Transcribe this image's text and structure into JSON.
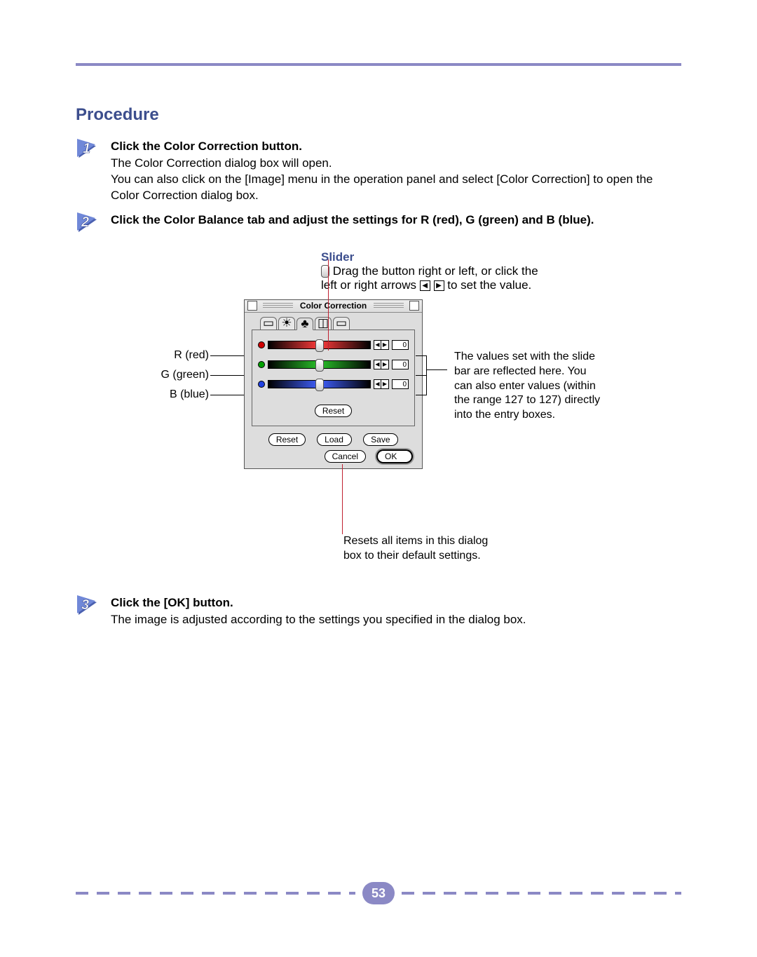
{
  "page": {
    "section_title": "Procedure",
    "page_number": "53",
    "colors": {
      "accent": "#8b89c5",
      "heading": "#3c4e8d",
      "leader": "#c02030"
    }
  },
  "steps": [
    {
      "num": "1",
      "heading": "Click the Color Correction button.",
      "body": "The Color Correction dialog box will open.\nYou can also click on the [Image] menu in the operation panel and select [Color Correction] to open the Color Correction dialog box."
    },
    {
      "num": "2",
      "heading": "Click the Color Balance tab and adjust the settings for R (red), G (green) and B (blue).",
      "body": ""
    },
    {
      "num": "3",
      "heading": "Click the [OK] button.",
      "body": "The image is adjusted according to the settings you specified in the dialog box."
    }
  ],
  "slider_note": {
    "label": "Slider",
    "line1_a": "Drag the button right or left, or click the",
    "line2_a": "left or right arrows",
    "line2_b": "to set the value."
  },
  "dialog": {
    "title": "Color Correction",
    "channels": [
      {
        "label": "R (red)",
        "dot_color": "#d00000",
        "track_mid": "#ff3b3b",
        "value": "0"
      },
      {
        "label": "G (green)",
        "dot_color": "#00a000",
        "track_mid": "#29c229",
        "value": "0"
      },
      {
        "label": "B (blue)",
        "dot_color": "#2040e0",
        "track_mid": "#4060ff",
        "value": "0"
      }
    ],
    "buttons": {
      "reset_inner": "Reset",
      "reset": "Reset",
      "load": "Load",
      "save": "Save",
      "cancel": "Cancel",
      "ok": "OK"
    }
  },
  "callouts": {
    "value_box": "The values set with the slide bar are reflected here.  You can also enter values (within the range 127 to 127) directly into the entry boxes.",
    "reset": "Resets all items in this dialog box to their default settings."
  }
}
